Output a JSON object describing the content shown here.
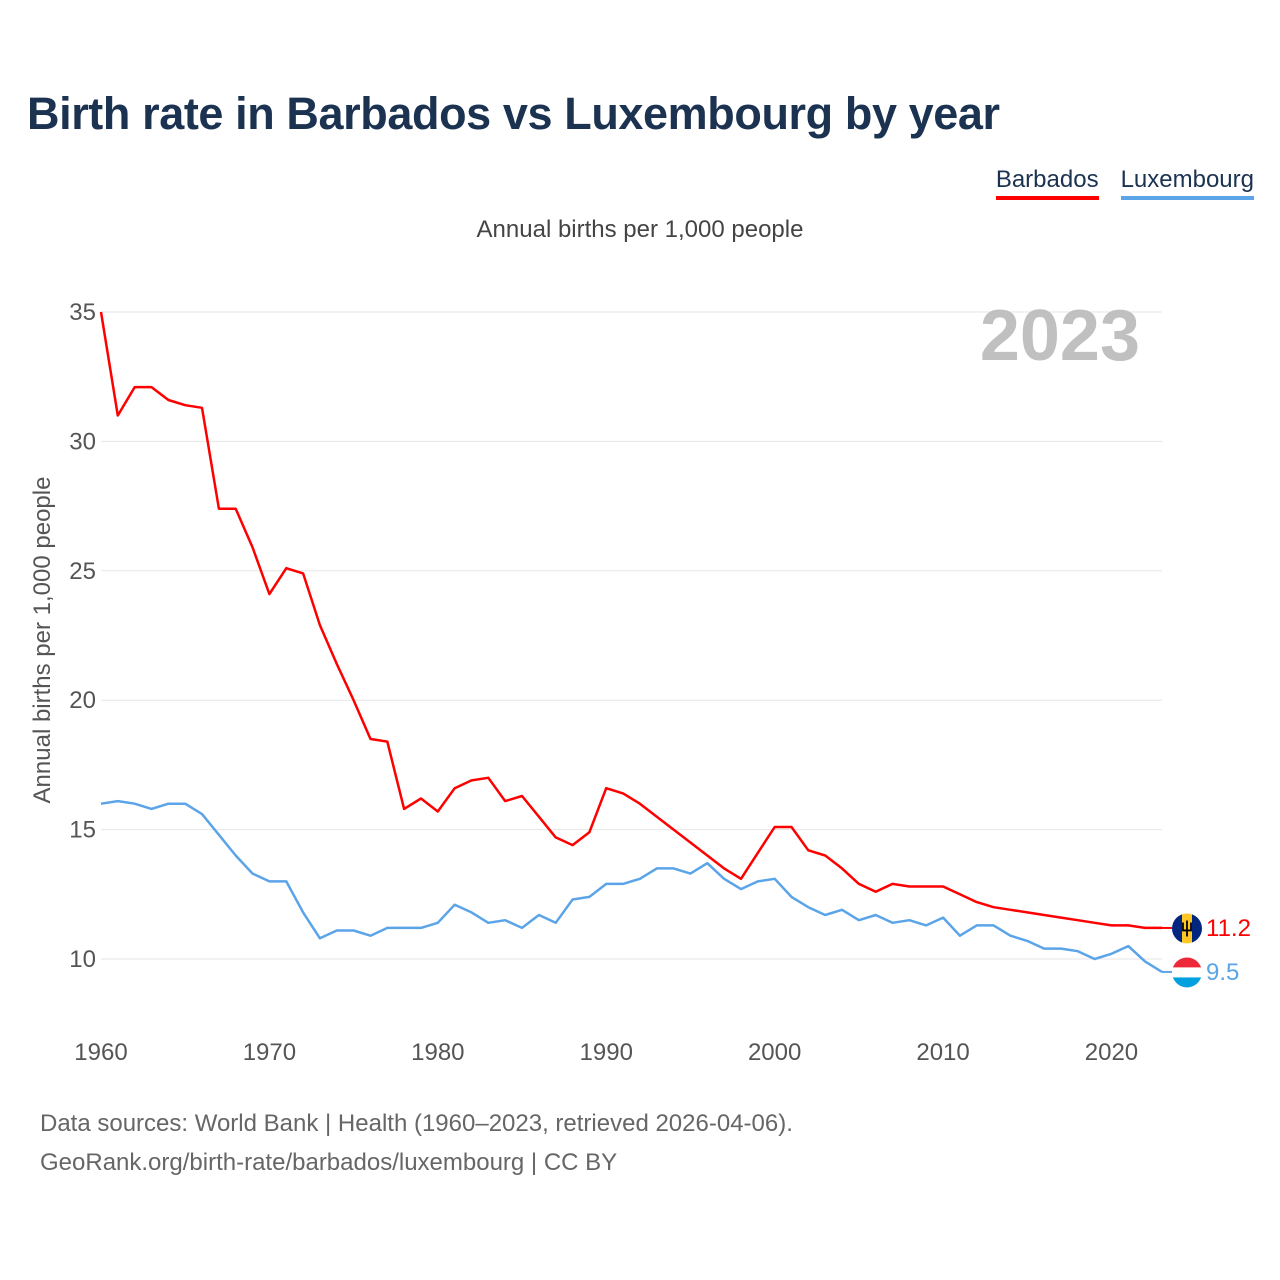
{
  "title": "Birth rate in Barbados vs Luxembourg by year",
  "subtitle": "Annual births per 1,000 people",
  "legend": {
    "barbados": "Barbados",
    "luxembourg": "Luxembourg"
  },
  "footer": {
    "line1": "Data sources: World Bank | Health (1960–2023, retrieved 2026-04-06).",
    "line2": "GeoRank.org/birth-rate/barbados/luxembourg | CC BY"
  },
  "colors": {
    "barbados": "#ff0000",
    "luxembourg": "#5ba4e8",
    "grid": "#e6e6e6",
    "year": "#c0c0c0",
    "axis_text": "#555555"
  },
  "icons": {
    "barbados_flag": "barbados-flag-icon",
    "luxembourg_flag": "luxembourg-flag-icon"
  },
  "chart_data": {
    "type": "line",
    "title": "Birth rate in Barbados vs Luxembourg by year",
    "subtitle": "Annual births per 1,000 people",
    "xlabel": "",
    "ylabel": "Annual births per 1,000 people",
    "year_label": "2023",
    "xlim": [
      1960,
      2023
    ],
    "ylim": [
      7.5,
      35
    ],
    "yticks": [
      10,
      15,
      20,
      25,
      30,
      35
    ],
    "xticks": [
      1960,
      1970,
      1980,
      1990,
      2000,
      2010,
      2020
    ],
    "x": [
      1960,
      1961,
      1962,
      1963,
      1964,
      1965,
      1966,
      1967,
      1968,
      1969,
      1970,
      1971,
      1972,
      1973,
      1974,
      1975,
      1976,
      1977,
      1978,
      1979,
      1980,
      1981,
      1982,
      1983,
      1984,
      1985,
      1986,
      1987,
      1988,
      1989,
      1990,
      1991,
      1992,
      1993,
      1994,
      1995,
      1996,
      1997,
      1998,
      1999,
      2000,
      2001,
      2002,
      2003,
      2004,
      2005,
      2006,
      2007,
      2008,
      2009,
      2010,
      2011,
      2012,
      2013,
      2014,
      2015,
      2016,
      2017,
      2018,
      2019,
      2020,
      2021,
      2022,
      2023
    ],
    "series": [
      {
        "name": "Barbados",
        "color": "#ff0000",
        "end_label": "11.2",
        "values": [
          35.0,
          31.0,
          32.1,
          32.1,
          31.6,
          31.4,
          31.3,
          27.4,
          27.4,
          25.9,
          24.1,
          25.1,
          24.9,
          22.9,
          21.4,
          20.0,
          18.5,
          18.4,
          15.8,
          16.2,
          15.7,
          16.6,
          16.9,
          17.0,
          16.1,
          16.3,
          15.5,
          14.7,
          14.4,
          14.9,
          16.6,
          16.4,
          16.0,
          15.5,
          15.0,
          14.5,
          14.0,
          13.5,
          13.1,
          14.1,
          15.1,
          15.1,
          14.2,
          14.0,
          13.5,
          12.9,
          12.6,
          12.9,
          12.8,
          12.8,
          12.8,
          12.5,
          12.2,
          12.0,
          11.9,
          11.8,
          11.7,
          11.6,
          11.5,
          11.4,
          11.3,
          11.3,
          11.2,
          11.2
        ]
      },
      {
        "name": "Luxembourg",
        "color": "#5ba4e8",
        "end_label": "9.5",
        "values": [
          16.0,
          16.1,
          16.0,
          15.8,
          16.0,
          16.0,
          15.6,
          14.8,
          14.0,
          13.3,
          13.0,
          13.0,
          11.8,
          10.8,
          11.1,
          11.1,
          10.9,
          11.2,
          11.2,
          11.2,
          11.4,
          12.1,
          11.8,
          11.4,
          11.5,
          11.2,
          11.7,
          11.4,
          12.3,
          12.4,
          12.9,
          12.9,
          13.1,
          13.5,
          13.5,
          13.3,
          13.7,
          13.1,
          12.7,
          13.0,
          13.1,
          12.4,
          12.0,
          11.7,
          11.9,
          11.5,
          11.7,
          11.4,
          11.5,
          11.3,
          11.6,
          10.9,
          11.3,
          11.3,
          10.9,
          10.7,
          10.4,
          10.4,
          10.3,
          10.0,
          10.2,
          10.5,
          9.9,
          9.5
        ]
      }
    ]
  }
}
